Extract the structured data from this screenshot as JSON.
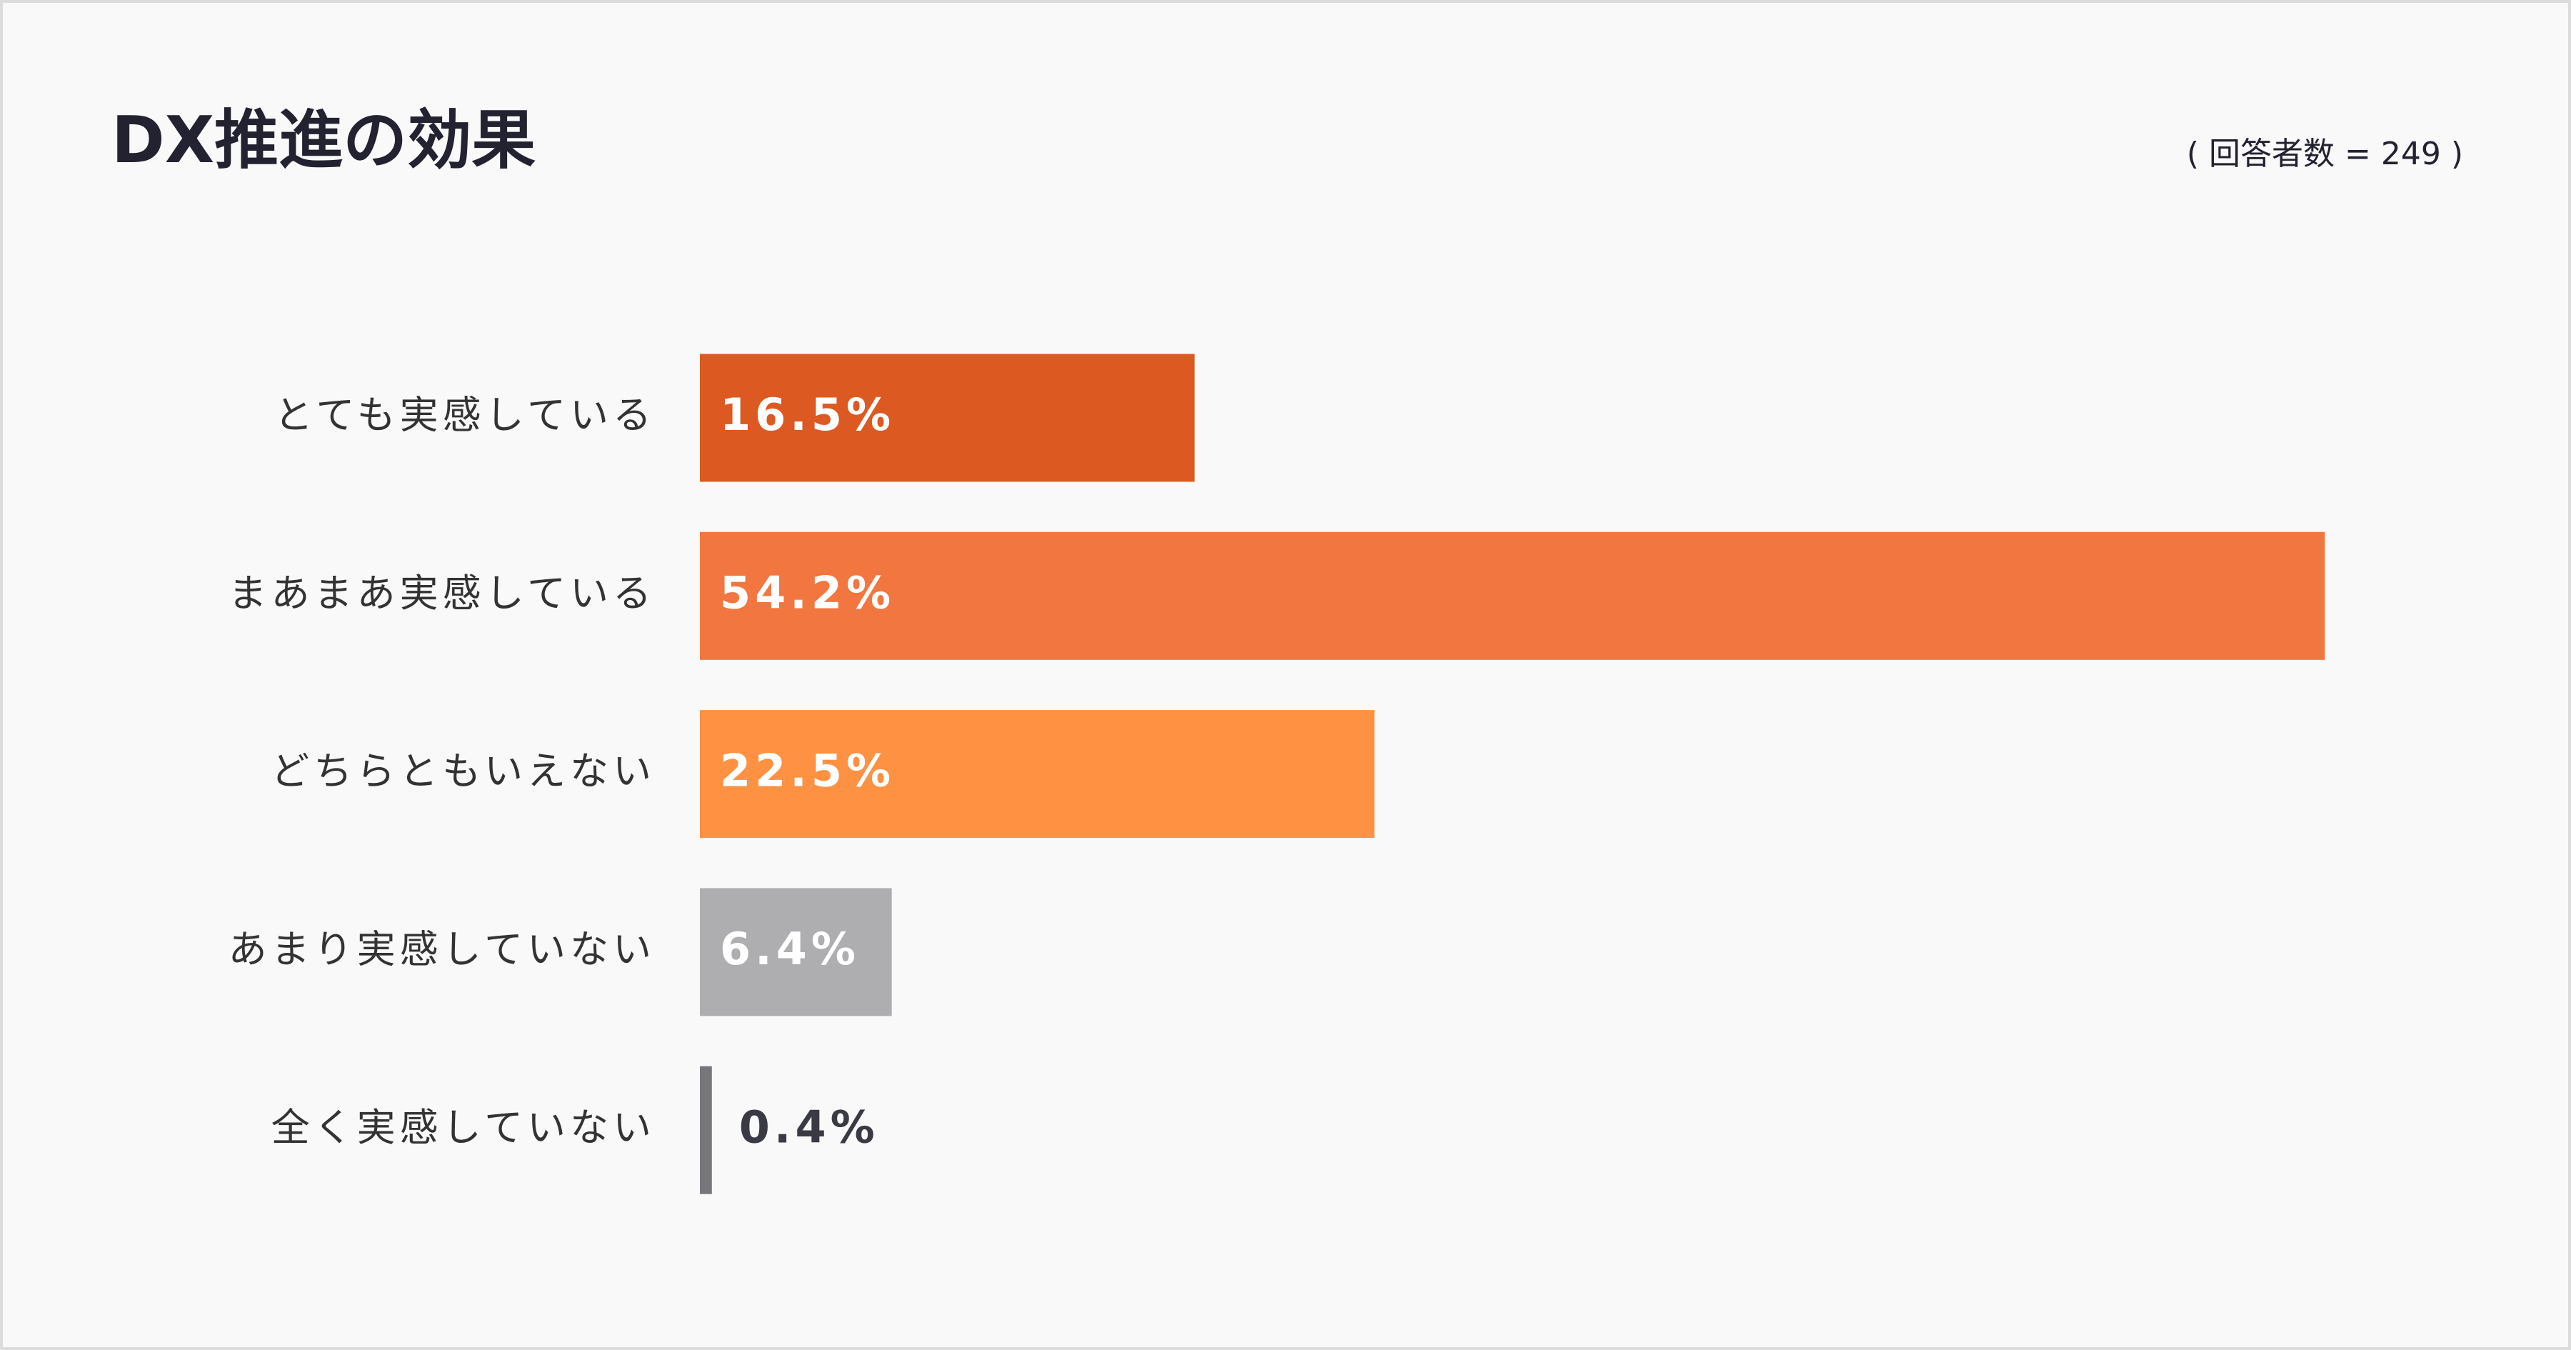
{
  "chart_data": {
    "type": "hbar",
    "title": "DX推進の効果",
    "subtitle": "( 回答者数 = 249 )",
    "categories": [
      "とても実感している",
      "まあまあ実感している",
      "どちらともいえない",
      "あまり実感していない",
      "全く実感していない"
    ],
    "values": [
      16.5,
      54.2,
      22.5,
      6.4,
      0.4
    ],
    "value_labels": [
      "16.5%",
      "54.2%",
      "22.5%",
      "6.4%",
      "0.4%"
    ],
    "colors": [
      "#dc5a22",
      "#f2763f",
      "#fe9142",
      "#aeadb0",
      "#77767b"
    ]
  }
}
